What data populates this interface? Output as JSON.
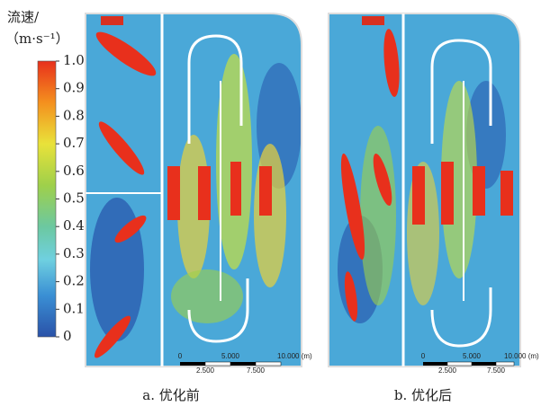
{
  "legend": {
    "title": "流速/",
    "unit": "（m·s⁻¹）",
    "ticks": [
      "1.00",
      "0.90",
      "0.80",
      "0.70",
      "0.60",
      "0.50",
      "0.40",
      "0.30",
      "0.20",
      "0.10",
      "0"
    ]
  },
  "panels": [
    {
      "caption": "a. 优化前",
      "scale": {
        "top": [
          "0",
          "5.000",
          "10.000 (m)"
        ],
        "bottom": [
          "2.500",
          "7.500"
        ]
      }
    },
    {
      "caption": "b. 优化后",
      "scale": {
        "top": [
          "0",
          "5.000",
          "10.000 (m)"
        ],
        "bottom": [
          "2.500",
          "7.500"
        ]
      }
    }
  ]
}
